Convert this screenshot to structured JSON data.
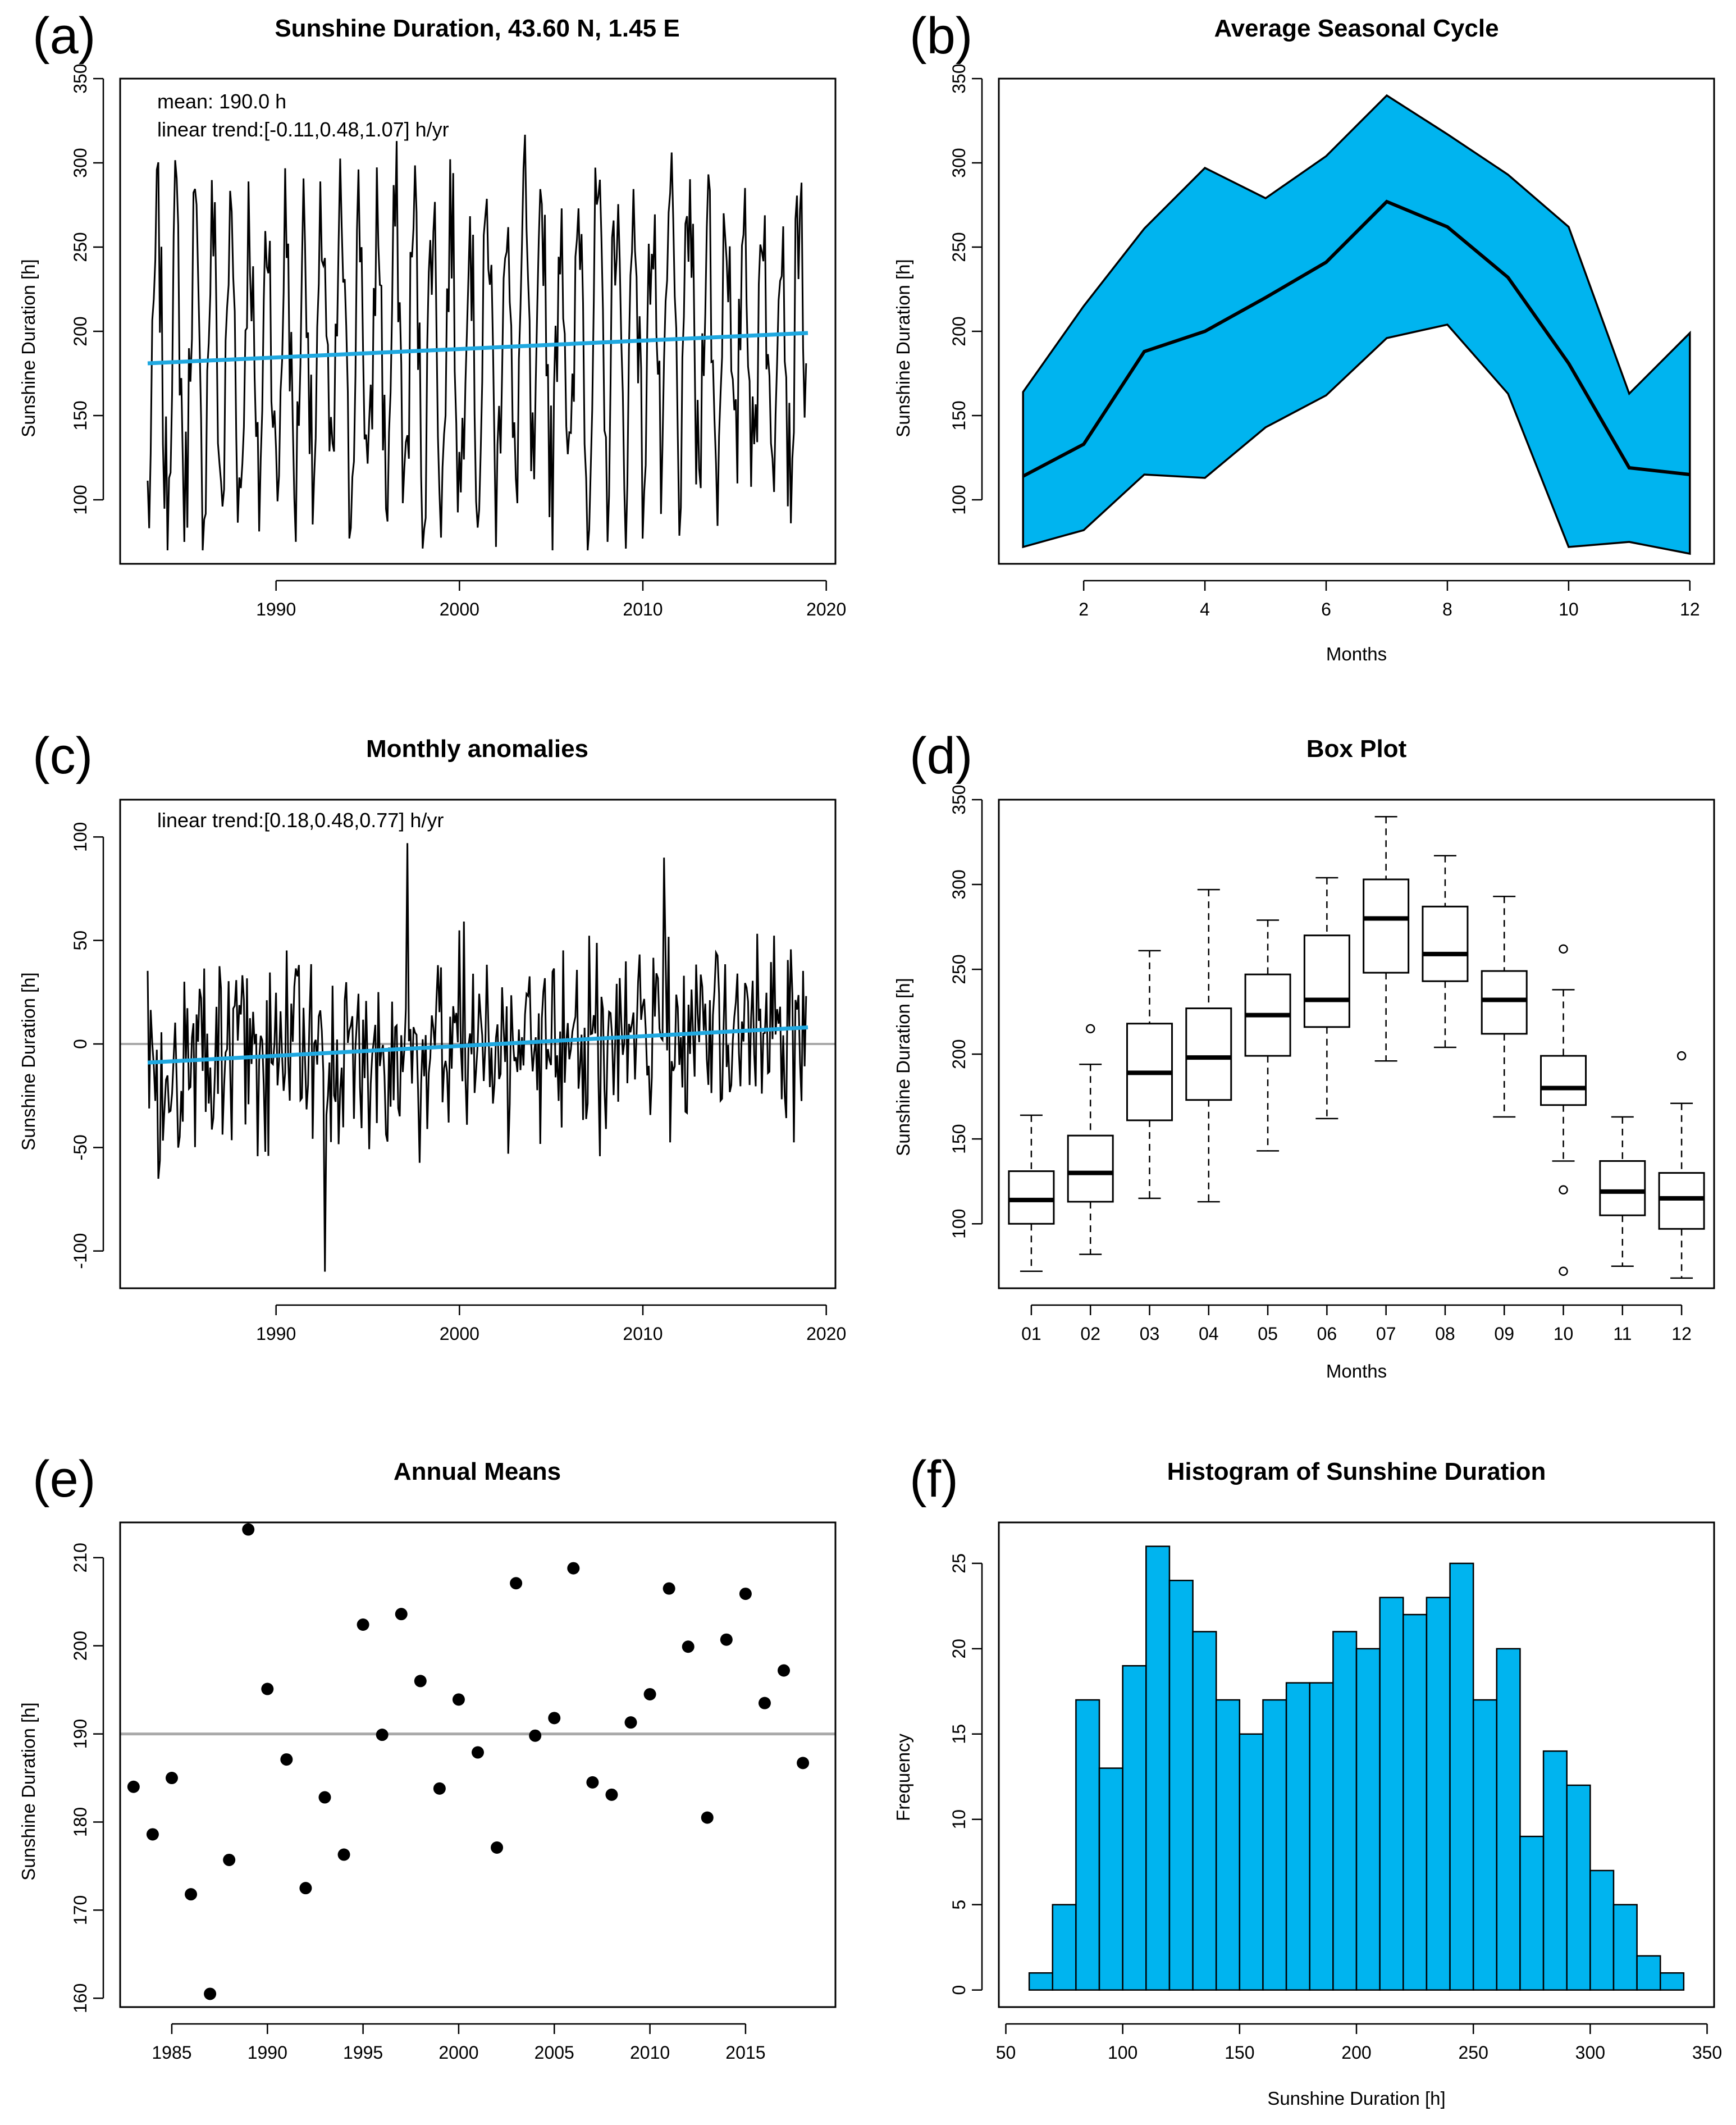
{
  "figure": {
    "colors": {
      "fill": "#00b4ef",
      "trend": "#1fa8e0",
      "refline": "#a9a9a9",
      "ink": "#000000"
    }
  },
  "chart_data": [
    {
      "id": "a",
      "panel_label": "(a)",
      "type": "line",
      "title": "Sunshine Duration, 43.60 N, 1.45 E",
      "xlabel": "",
      "ylabel": "Sunshine Duration [h]",
      "xlim": [
        1981.5,
        2020.5
      ],
      "ylim": [
        62,
        350
      ],
      "xticks": [
        1990,
        2000,
        2010,
        2020
      ],
      "yticks": [
        100,
        150,
        200,
        250,
        300,
        350
      ],
      "annotations": [
        "mean: 190.0 h",
        "linear trend:[-0.11,0.48,1.07] h/yr"
      ],
      "series": [
        {
          "name": "monthly sunshine duration",
          "x_start": 1983.0,
          "x_step": 0.0833,
          "generator": "seasonal",
          "mean": 190.0,
          "amplitude": 82
        },
        {
          "name": "linear trend",
          "x": [
            1983.0,
            2019.0
          ],
          "y": [
            181.0,
            199.0
          ]
        }
      ]
    },
    {
      "id": "b",
      "panel_label": "(b)",
      "type": "area",
      "title": "Average Seasonal Cycle",
      "xlabel": "Months",
      "ylabel": "Sunshine Duration [h]",
      "xlim": [
        0.6,
        12.4
      ],
      "ylim": [
        62,
        350
      ],
      "xticks": [
        2,
        4,
        6,
        8,
        10,
        12
      ],
      "yticks": [
        100,
        150,
        200,
        250,
        300,
        350
      ],
      "x": [
        1,
        2,
        3,
        4,
        5,
        6,
        7,
        8,
        9,
        10,
        11,
        12
      ],
      "series": [
        {
          "name": "max",
          "values": [
            164,
            215,
            261,
            297,
            279,
            304,
            340,
            317,
            293,
            262,
            163,
            199
          ]
        },
        {
          "name": "mean",
          "values": [
            114,
            133,
            188,
            200,
            220,
            241,
            277,
            262,
            232,
            181,
            119,
            115
          ]
        },
        {
          "name": "min",
          "values": [
            72,
            82,
            115,
            113,
            143,
            162,
            196,
            204,
            163,
            72,
            75,
            68
          ]
        }
      ]
    },
    {
      "id": "c",
      "panel_label": "(c)",
      "type": "line",
      "title": "Monthly anomalies",
      "xlabel": "",
      "ylabel": "Sunshine Duration [h]",
      "xlim": [
        1981.5,
        2020.5
      ],
      "ylim": [
        -118,
        118
      ],
      "xticks": [
        1990,
        2000,
        2010,
        2020
      ],
      "yticks": [
        -100,
        -50,
        0,
        50,
        100
      ],
      "annotations": [
        "linear trend:[0.18,0.48,0.77] h/yr"
      ],
      "series": [
        {
          "name": "anomalies",
          "x_start": 1983.0,
          "x_step": 0.0833,
          "generator": "noise",
          "amplitude": 38
        },
        {
          "name": "linear trend",
          "x": [
            1983.0,
            2019.0
          ],
          "y": [
            -9.0,
            8.0
          ]
        },
        {
          "name": "zero line",
          "y": 0
        }
      ]
    },
    {
      "id": "d",
      "panel_label": "(d)",
      "type": "box",
      "title": "Box Plot",
      "xlabel": "Months",
      "ylabel": "Sunshine Duration [h]",
      "ylim": [
        62,
        350
      ],
      "yticks": [
        100,
        150,
        200,
        250,
        300,
        350
      ],
      "categories": [
        "01",
        "02",
        "03",
        "04",
        "05",
        "06",
        "07",
        "08",
        "09",
        "10",
        "11",
        "12"
      ],
      "boxes": [
        {
          "min": 72,
          "q1": 100,
          "median": 114,
          "q3": 131,
          "max": 164,
          "outliers": []
        },
        {
          "min": 82,
          "q1": 113,
          "median": 130,
          "q3": 152,
          "max": 194,
          "outliers": [
            215
          ]
        },
        {
          "min": 115,
          "q1": 161,
          "median": 189,
          "q3": 218,
          "max": 261,
          "outliers": []
        },
        {
          "min": 113,
          "q1": 173,
          "median": 198,
          "q3": 227,
          "max": 297,
          "outliers": []
        },
        {
          "min": 143,
          "q1": 199,
          "median": 223,
          "q3": 247,
          "max": 279,
          "outliers": []
        },
        {
          "min": 162,
          "q1": 216,
          "median": 232,
          "q3": 270,
          "max": 304,
          "outliers": []
        },
        {
          "min": 196,
          "q1": 248,
          "median": 280,
          "q3": 303,
          "max": 340,
          "outliers": []
        },
        {
          "min": 204,
          "q1": 243,
          "median": 259,
          "q3": 287,
          "max": 317,
          "outliers": []
        },
        {
          "min": 163,
          "q1": 212,
          "median": 232,
          "q3": 249,
          "max": 293,
          "outliers": []
        },
        {
          "min": 137,
          "q1": 170,
          "median": 180,
          "q3": 199,
          "max": 238,
          "outliers": [
            262,
            120,
            72
          ]
        },
        {
          "min": 75,
          "q1": 105,
          "median": 119,
          "q3": 137,
          "max": 163,
          "outliers": []
        },
        {
          "min": 68,
          "q1": 97,
          "median": 115,
          "q3": 130,
          "max": 171,
          "outliers": [
            199
          ]
        }
      ]
    },
    {
      "id": "e",
      "panel_label": "(e)",
      "type": "scatter",
      "title": "Annual Means",
      "xlabel": "",
      "ylabel": "Sunshine Duration [h]",
      "xlim": [
        1982.3,
        2019.7
      ],
      "ylim": [
        159,
        214
      ],
      "xticks": [
        1985,
        1990,
        1995,
        2000,
        2005,
        2010,
        2015
      ],
      "yticks": [
        160,
        170,
        180,
        190,
        200,
        210
      ],
      "mean_line": 190,
      "x": [
        1983,
        1984,
        1985,
        1986,
        1987,
        1988,
        1989,
        1990,
        1991,
        1992,
        1993,
        1994,
        1995,
        1996,
        1997,
        1998,
        1999,
        2000,
        2001,
        2002,
        2003,
        2004,
        2005,
        2006,
        2007,
        2008,
        2009,
        2010,
        2011,
        2012,
        2013,
        2014,
        2015,
        2016,
        2017,
        2018
      ],
      "y": [
        184.0,
        178.6,
        185.0,
        171.8,
        160.5,
        175.7,
        213.2,
        195.1,
        187.1,
        172.5,
        182.8,
        176.3,
        202.4,
        189.9,
        203.6,
        196.0,
        183.8,
        193.9,
        187.9,
        177.1,
        207.1,
        189.8,
        191.8,
        208.8,
        184.5,
        183.1,
        191.3,
        194.5,
        206.5,
        199.9,
        180.5,
        200.7,
        205.9,
        193.5,
        197.2,
        186.7
      ]
    },
    {
      "id": "f",
      "panel_label": "(f)",
      "type": "bar",
      "title": "Histogram of Sunshine Duration",
      "xlabel": "Sunshine Duration [h]",
      "ylabel": "Frequency",
      "xlim": [
        47,
        353
      ],
      "ylim": [
        -1,
        27.4
      ],
      "xticks": [
        50,
        100,
        150,
        200,
        250,
        300,
        350
      ],
      "yticks": [
        0,
        5,
        10,
        15,
        20,
        25
      ],
      "bin_start": 60,
      "bin_width": 10,
      "values": [
        1,
        5,
        17,
        13,
        19,
        26,
        24,
        21,
        17,
        15,
        17,
        18,
        18,
        21,
        20,
        23,
        22,
        23,
        25,
        17,
        20,
        9,
        14,
        12,
        7,
        5,
        2,
        1
      ]
    }
  ]
}
